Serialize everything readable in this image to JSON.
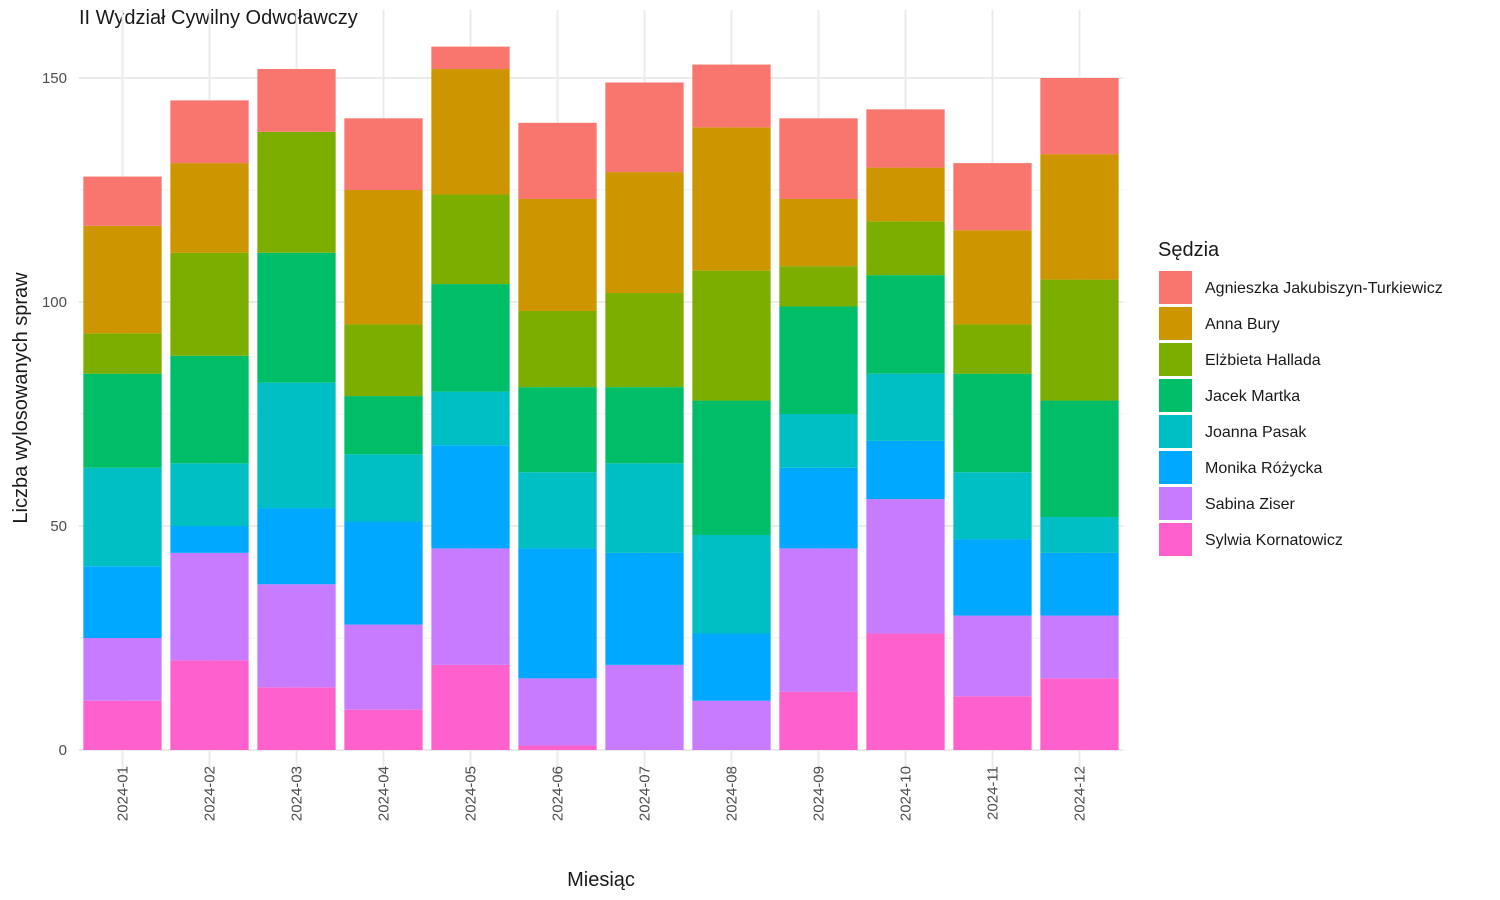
{
  "chart_data": {
    "type": "bar",
    "stacked": true,
    "title": "II Wydział Cywilny Odwoławczy",
    "xlabel": "Miesiąc",
    "ylabel": "Liczba wylosowanych spraw",
    "ylim": [
      0,
      160
    ],
    "yticks": [
      0,
      50,
      100,
      150
    ],
    "grid": true,
    "legend": {
      "title": "Sędzia",
      "placement": "right"
    },
    "categories": [
      "2024-01",
      "2024-02",
      "2024-03",
      "2024-04",
      "2024-05",
      "2024-06",
      "2024-07",
      "2024-08",
      "2024-09",
      "2024-10",
      "2024-11",
      "2024-12"
    ],
    "series": [
      {
        "name": "Sylwia Kornatowicz",
        "color": "#FF61CC",
        "values": [
          11,
          20,
          14,
          9,
          19,
          1,
          0,
          0,
          13,
          26,
          12,
          16
        ]
      },
      {
        "name": "Sabina Ziser",
        "color": "#C77CFF",
        "values": [
          14,
          24,
          23,
          19,
          26,
          15,
          19,
          11,
          32,
          30,
          18,
          14
        ]
      },
      {
        "name": "Monika Różycka",
        "color": "#00A9FF",
        "values": [
          16,
          6,
          17,
          23,
          23,
          29,
          25,
          15,
          18,
          13,
          17,
          14
        ]
      },
      {
        "name": "Joanna Pasak",
        "color": "#00BFC4",
        "values": [
          22,
          14,
          28,
          15,
          12,
          17,
          20,
          22,
          12,
          15,
          15,
          8
        ]
      },
      {
        "name": "Jacek Martka",
        "color": "#00BE67",
        "values": [
          21,
          24,
          29,
          13,
          24,
          19,
          17,
          30,
          24,
          22,
          22,
          26
        ]
      },
      {
        "name": "Elżbieta Hallada",
        "color": "#7CAE00",
        "values": [
          9,
          23,
          27,
          16,
          20,
          17,
          21,
          29,
          9,
          12,
          11,
          27
        ]
      },
      {
        "name": "Anna Bury",
        "color": "#CD9600",
        "values": [
          24,
          20,
          0,
          30,
          28,
          25,
          27,
          32,
          15,
          12,
          21,
          28
        ]
      },
      {
        "name": "Agnieszka Jakubiszyn-Turkiewicz",
        "color": "#F8766D",
        "values": [
          11,
          14,
          14,
          16,
          5,
          17,
          20,
          14,
          18,
          13,
          15,
          17
        ]
      }
    ]
  }
}
